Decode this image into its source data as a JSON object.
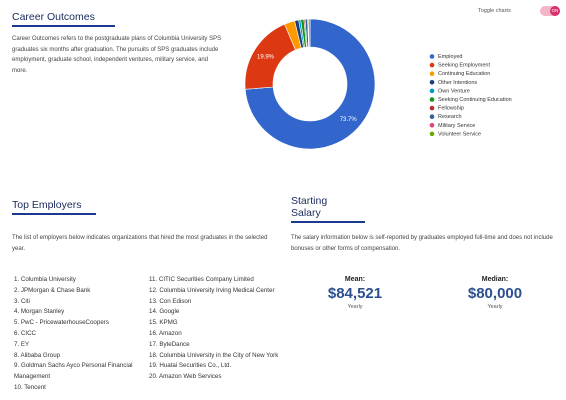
{
  "career_outcomes": {
    "title": "Career Outcomes",
    "toggle_label": "Toggle charts",
    "toggle_state": "ON",
    "description": "Career Outcomes refers to the postgraduate plans of Columbia University SPS graduates six months after graduation. The pursuits of SPS graduates include employment, graduate school, independent ventures, military service, and more."
  },
  "chart_data": {
    "type": "pie",
    "donut": true,
    "categories": [
      "Employed",
      "Seeking Employment",
      "Continuing Education",
      "Other Intentions",
      "Own Venture",
      "Seeking Continuing Education",
      "Fellowship",
      "Research",
      "Military Service",
      "Volunteer Service"
    ],
    "values": [
      73.7,
      19.9,
      2.6,
      1.0,
      0.5,
      0.8,
      0.3,
      0.6,
      0.2,
      0.4
    ],
    "value_labels": [
      "73.7%",
      "19.9%",
      null,
      null,
      null,
      null,
      null,
      null,
      null,
      null
    ],
    "colors": [
      "#3366cc",
      "#dc3912",
      "#ff9900",
      "#1c3f7a",
      "#0099c6",
      "#109618",
      "#b82e2e",
      "#316395",
      "#dd4477",
      "#66aa00"
    ],
    "legend": "right"
  },
  "top_employers": {
    "title": "Top Employers",
    "description": "The list of employers below indicates organizations that hired the most graduates in the selected year.",
    "items": [
      "1. Columbia University",
      "2. JPMorgan & Chase Bank",
      "3. Citi",
      "4. Morgan Stanley",
      "5. PwC - PricewaterhouseCoopers",
      "6. CICC",
      "7. EY",
      "8. Alibaba Group",
      "9. Goldman Sachs Ayco Personal Financial Management",
      "10. Tencent",
      "11. CITIC Securities Company Limited",
      "12. Columbia University Irving Medical Center",
      "13. Con Edison",
      "14. Google",
      "15. KPMG",
      "16. Amazon",
      "17. ByteDance",
      "18. Columbia University in the City of New York",
      "19. Huatai Securities Co., Ltd.",
      "20. Amazon Web Services"
    ]
  },
  "starting_salary": {
    "title": "Starting Salary",
    "description": "The salary information below is self-reported by graduates employed full-time and does not include bonuses or other forms of compensation.",
    "stats": [
      {
        "label": "Mean:",
        "value": "$84,521",
        "period": "Yearly"
      },
      {
        "label": "Median:",
        "value": "$80,000",
        "period": "Yearly"
      }
    ]
  }
}
